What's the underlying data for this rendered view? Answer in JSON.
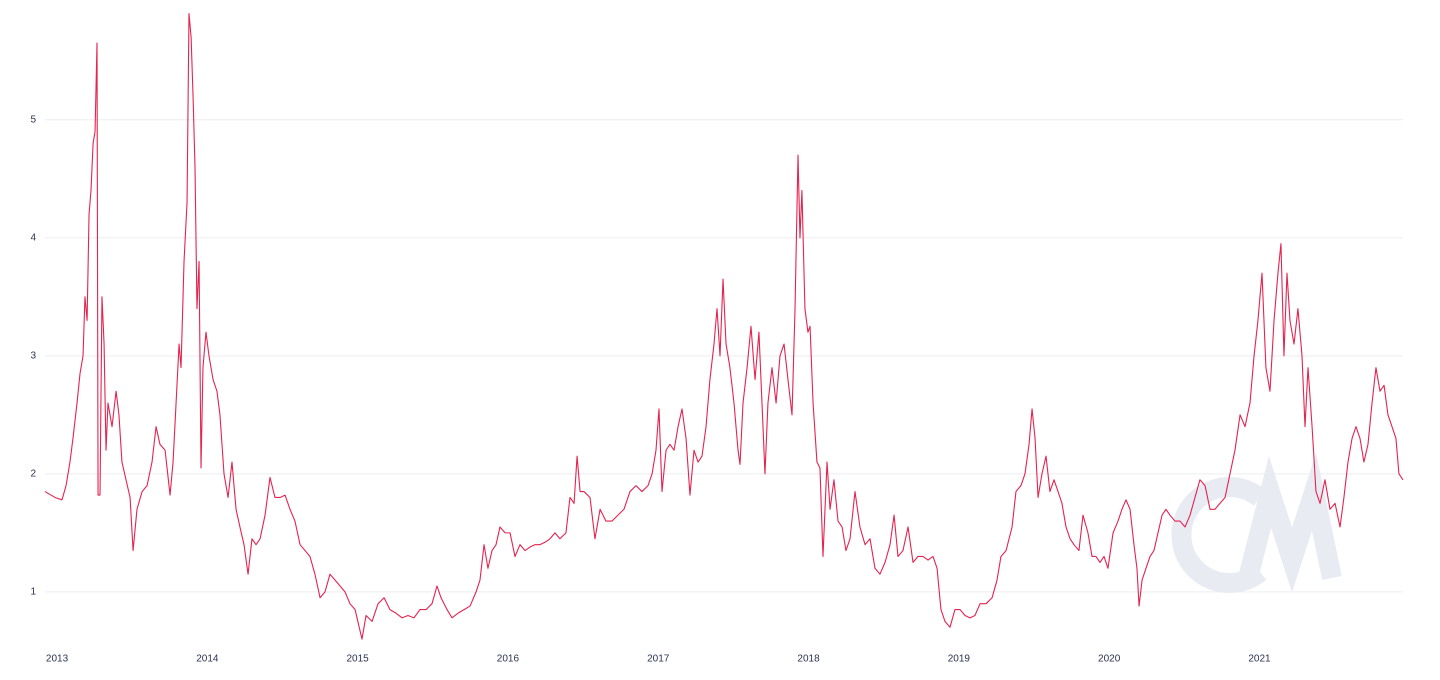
{
  "chart_data": {
    "type": "line",
    "color": "#e5234f",
    "grid": true,
    "x": [
      2012.92,
      2012.987,
      2013.033,
      2013.06,
      2013.086,
      2013.106,
      2013.133,
      2013.153,
      2013.173,
      2013.186,
      2013.2,
      2013.213,
      2013.226,
      2013.24,
      2013.253,
      2013.266,
      2013.273,
      2013.286,
      2013.299,
      2013.313,
      2013.326,
      2013.339,
      2013.366,
      2013.393,
      2013.412,
      2013.432,
      2013.459,
      2013.486,
      2013.506,
      2013.532,
      2013.566,
      2013.599,
      2013.632,
      2013.659,
      2013.685,
      2013.719,
      2013.752,
      2013.772,
      2013.792,
      2013.812,
      2013.825,
      2013.845,
      2013.865,
      2013.878,
      2013.892,
      2013.905,
      2013.918,
      2013.931,
      2013.945,
      2013.958,
      2013.971,
      2013.991,
      2014.011,
      2014.038,
      2014.064,
      2014.084,
      2014.111,
      2014.138,
      2014.164,
      2014.191,
      2014.217,
      2014.244,
      2014.271,
      2014.297,
      2014.324,
      2014.351,
      2014.384,
      2014.417,
      2014.45,
      2014.484,
      2014.517,
      2014.55,
      2014.583,
      2014.617,
      2014.65,
      2014.683,
      2014.716,
      2014.75,
      2014.783,
      2014.816,
      2014.85,
      2014.883,
      2014.916,
      2014.949,
      2014.983,
      2015.029,
      2015.056,
      2015.096,
      2015.136,
      2015.176,
      2015.215,
      2015.255,
      2015.295,
      2015.335,
      2015.375,
      2015.415,
      2015.455,
      2015.495,
      2015.528,
      2015.555,
      2015.595,
      2015.628,
      2015.668,
      2015.708,
      2015.748,
      2015.788,
      2015.814,
      2015.841,
      2015.867,
      2015.894,
      2015.921,
      2015.947,
      2015.981,
      2016.014,
      2016.047,
      2016.08,
      2016.114,
      2016.147,
      2016.18,
      2016.213,
      2016.247,
      2016.28,
      2016.313,
      2016.346,
      2016.386,
      2016.413,
      2016.44,
      2016.46,
      2016.48,
      2016.506,
      2016.546,
      2016.579,
      2016.613,
      2016.652,
      2016.692,
      2016.732,
      2016.772,
      2016.812,
      2016.852,
      2016.892,
      2016.932,
      2016.959,
      2016.985,
      2017.005,
      2017.025,
      2017.052,
      2017.078,
      2017.105,
      2017.132,
      2017.158,
      2017.185,
      2017.211,
      2017.238,
      2017.265,
      2017.291,
      2017.318,
      2017.344,
      2017.371,
      2017.391,
      2017.411,
      2017.431,
      2017.451,
      2017.477,
      2017.504,
      2017.531,
      2017.544,
      2017.564,
      2017.591,
      2017.617,
      2017.644,
      2017.67,
      2017.697,
      2017.71,
      2017.73,
      2017.757,
      2017.784,
      2017.81,
      2017.837,
      2017.863,
      2017.89,
      2017.91,
      2017.93,
      2017.943,
      2017.956,
      2017.976,
      2017.996,
      2018.01,
      2018.03,
      2018.056,
      2018.076,
      2018.096,
      2018.123,
      2018.143,
      2018.169,
      2018.196,
      2018.223,
      2018.249,
      2018.276,
      2018.309,
      2018.342,
      2018.376,
      2018.409,
      2018.442,
      2018.475,
      2018.509,
      2018.542,
      2018.569,
      2018.595,
      2018.628,
      2018.662,
      2018.695,
      2018.728,
      2018.761,
      2018.795,
      2018.828,
      2018.855,
      2018.881,
      2018.908,
      2018.941,
      2018.974,
      2019.008,
      2019.041,
      2019.074,
      2019.107,
      2019.141,
      2019.181,
      2019.221,
      2019.254,
      2019.28,
      2019.314,
      2019.354,
      2019.38,
      2019.413,
      2019.44,
      2019.467,
      2019.487,
      2019.507,
      2019.527,
      2019.553,
      2019.58,
      2019.606,
      2019.633,
      2019.66,
      2019.686,
      2019.713,
      2019.74,
      2019.766,
      2019.799,
      2019.826,
      2019.859,
      2019.886,
      2019.912,
      2019.939,
      2019.966,
      2019.992,
      2020.026,
      2020.059,
      2020.085,
      2020.112,
      2020.139,
      2020.165,
      2020.185,
      2020.199,
      2020.219,
      2020.245,
      2020.272,
      2020.298,
      2020.325,
      2020.352,
      2020.378,
      2020.405,
      2020.438,
      2020.471,
      2020.505,
      2020.538,
      2020.571,
      2020.604,
      2020.638,
      2020.671,
      2020.704,
      2020.737,
      2020.771,
      2020.804,
      2020.837,
      2020.871,
      2020.904,
      2020.937,
      2020.964,
      2020.99,
      2021.017,
      2021.043,
      2021.07,
      2021.097,
      2021.123,
      2021.143,
      2021.163,
      2021.183,
      2021.203,
      2021.23,
      2021.256,
      2021.283,
      2021.303,
      2021.323,
      2021.35,
      2021.376,
      2021.403,
      2021.436,
      2021.469,
      2021.503,
      2021.536,
      2021.562,
      2021.589,
      2021.616,
      2021.642,
      2021.669,
      2021.695,
      2021.722,
      2021.749,
      2021.775,
      2021.802,
      2021.829,
      2021.855,
      2021.882,
      2021.908,
      2021.928,
      2021.955
    ],
    "values": [
      1.85,
      1.8,
      1.78,
      1.9,
      2.1,
      2.3,
      2.6,
      2.85,
      3.0,
      3.5,
      3.3,
      4.2,
      4.4,
      4.8,
      4.9,
      5.65,
      1.82,
      1.82,
      3.5,
      3.1,
      2.2,
      2.6,
      2.4,
      2.7,
      2.5,
      2.1,
      1.95,
      1.8,
      1.35,
      1.7,
      1.85,
      1.9,
      2.1,
      2.4,
      2.25,
      2.2,
      1.82,
      2.1,
      2.6,
      3.1,
      2.9,
      3.8,
      4.3,
      5.9,
      5.7,
      5.2,
      4.6,
      3.4,
      3.8,
      2.05,
      2.9,
      3.2,
      3.0,
      2.8,
      2.7,
      2.5,
      2.0,
      1.8,
      2.1,
      1.7,
      1.55,
      1.4,
      1.15,
      1.45,
      1.4,
      1.45,
      1.65,
      1.97,
      1.8,
      1.8,
      1.82,
      1.7,
      1.6,
      1.4,
      1.35,
      1.3,
      1.15,
      0.95,
      1.0,
      1.15,
      1.1,
      1.05,
      1.0,
      0.9,
      0.85,
      0.6,
      0.8,
      0.75,
      0.9,
      0.95,
      0.85,
      0.82,
      0.78,
      0.8,
      0.78,
      0.85,
      0.85,
      0.9,
      1.05,
      0.95,
      0.85,
      0.78,
      0.82,
      0.85,
      0.88,
      1.0,
      1.1,
      1.4,
      1.2,
      1.35,
      1.4,
      1.55,
      1.5,
      1.5,
      1.3,
      1.4,
      1.35,
      1.38,
      1.4,
      1.4,
      1.42,
      1.45,
      1.5,
      1.45,
      1.5,
      1.8,
      1.75,
      2.15,
      1.85,
      1.85,
      1.8,
      1.45,
      1.7,
      1.6,
      1.6,
      1.65,
      1.7,
      1.85,
      1.9,
      1.85,
      1.9,
      2.0,
      2.2,
      2.55,
      1.85,
      2.2,
      2.25,
      2.2,
      2.4,
      2.55,
      2.3,
      1.82,
      2.2,
      2.1,
      2.15,
      2.4,
      2.8,
      3.1,
      3.4,
      3.0,
      3.65,
      3.1,
      2.9,
      2.6,
      2.2,
      2.08,
      2.6,
      2.9,
      3.25,
      2.8,
      3.2,
      2.4,
      2.0,
      2.6,
      2.9,
      2.6,
      3.0,
      3.1,
      2.8,
      2.5,
      3.4,
      4.7,
      4.0,
      4.4,
      3.4,
      3.2,
      3.25,
      2.6,
      2.1,
      2.05,
      1.3,
      2.1,
      1.7,
      1.95,
      1.6,
      1.55,
      1.35,
      1.45,
      1.85,
      1.55,
      1.4,
      1.45,
      1.2,
      1.15,
      1.25,
      1.4,
      1.65,
      1.3,
      1.35,
      1.55,
      1.25,
      1.3,
      1.3,
      1.27,
      1.3,
      1.2,
      0.85,
      0.75,
      0.7,
      0.85,
      0.85,
      0.8,
      0.78,
      0.8,
      0.9,
      0.9,
      0.95,
      1.1,
      1.3,
      1.35,
      1.55,
      1.85,
      1.9,
      2.0,
      2.25,
      2.55,
      2.3,
      1.8,
      2.0,
      2.15,
      1.85,
      1.95,
      1.85,
      1.75,
      1.55,
      1.45,
      1.4,
      1.35,
      1.65,
      1.5,
      1.3,
      1.3,
      1.25,
      1.3,
      1.2,
      1.5,
      1.6,
      1.7,
      1.78,
      1.7,
      1.4,
      1.2,
      0.88,
      1.1,
      1.2,
      1.3,
      1.35,
      1.5,
      1.65,
      1.7,
      1.65,
      1.6,
      1.6,
      1.55,
      1.65,
      1.8,
      1.95,
      1.9,
      1.7,
      1.7,
      1.75,
      1.8,
      2.0,
      2.2,
      2.5,
      2.4,
      2.6,
      3.0,
      3.3,
      3.7,
      2.9,
      2.7,
      3.3,
      3.7,
      3.95,
      3.0,
      3.7,
      3.3,
      3.1,
      3.4,
      3.0,
      2.4,
      2.9,
      2.4,
      1.85,
      1.75,
      1.95,
      1.7,
      1.75,
      1.55,
      1.8,
      2.1,
      2.3,
      2.4,
      2.3,
      2.1,
      2.25,
      2.6,
      2.9,
      2.7,
      2.75,
      2.5,
      2.4,
      2.3,
      2.0,
      1.95
    ],
    "xlim": [
      2012.92,
      2021.955
    ],
    "xticks": [
      2013,
      2014,
      2015,
      2016,
      2017,
      2018,
      2019,
      2020,
      2021
    ],
    "ylim": [
      0.55,
      5.93
    ],
    "yticks": [
      1,
      2,
      3,
      4,
      5
    ]
  }
}
